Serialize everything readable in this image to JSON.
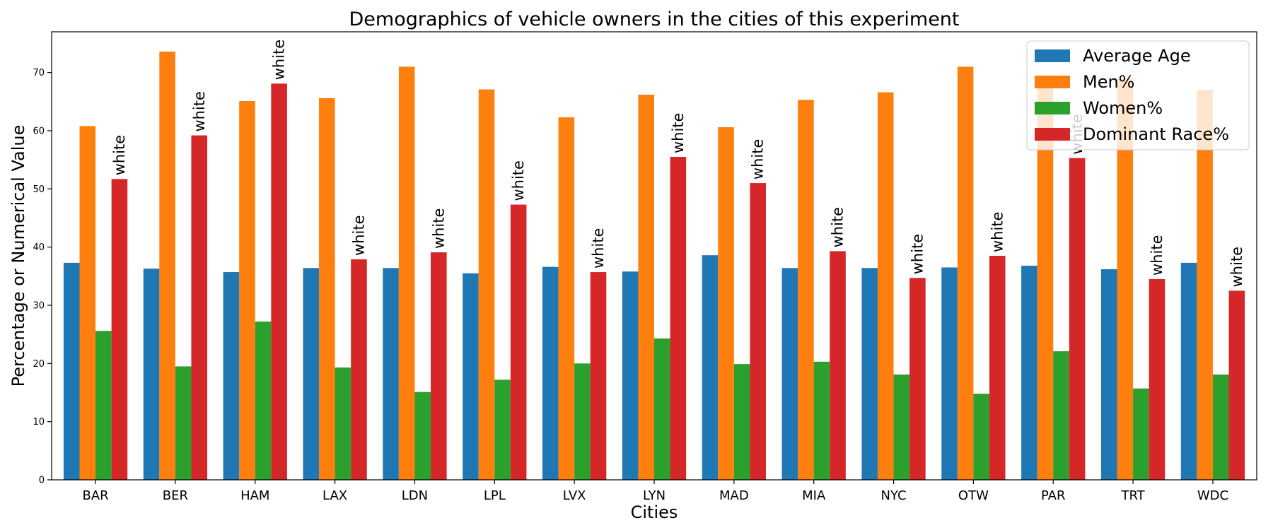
{
  "chart_data": {
    "type": "bar",
    "title": "Demographics of vehicle owners in the cities of this experiment",
    "xlabel": "Cities",
    "ylabel": "Percentage or Numerical Value",
    "ylim": [
      0,
      77
    ],
    "yticks": [
      0,
      10,
      20,
      30,
      40,
      50,
      60,
      70
    ],
    "grid": false,
    "legend_position": "top-right",
    "categories": [
      "BAR",
      "BER",
      "HAM",
      "LAX",
      "LDN",
      "LPL",
      "LVX",
      "LYN",
      "MAD",
      "MIA",
      "NYC",
      "OTW",
      "PAR",
      "TRT",
      "WDC"
    ],
    "series": [
      {
        "name": "Average Age",
        "color": "#1f77b4",
        "values": [
          37.3,
          36.3,
          35.7,
          36.4,
          36.4,
          35.5,
          36.6,
          35.8,
          38.6,
          36.4,
          36.4,
          36.5,
          36.8,
          36.2,
          37.3
        ]
      },
      {
        "name": "Men%",
        "color": "#ff7f0e",
        "values": [
          60.8,
          73.6,
          65.1,
          65.6,
          71.0,
          67.1,
          62.3,
          66.2,
          60.6,
          65.3,
          66.6,
          71.0,
          69.0,
          69.0,
          67.0
        ]
      },
      {
        "name": "Women%",
        "color": "#2ca02c",
        "values": [
          25.6,
          19.5,
          27.2,
          19.3,
          15.1,
          17.2,
          20.0,
          24.3,
          19.9,
          20.3,
          18.1,
          14.8,
          22.1,
          15.7,
          18.1
        ]
      },
      {
        "name": "Dominant Race%",
        "color": "#d62728",
        "values": [
          51.7,
          59.2,
          68.1,
          37.9,
          39.1,
          47.3,
          35.7,
          55.5,
          51.0,
          39.3,
          34.7,
          38.5,
          55.3,
          34.5,
          32.5
        ],
        "labels": [
          "white",
          "white",
          "white",
          "white",
          "white",
          "white",
          "white",
          "white",
          "white",
          "white",
          "white",
          "white",
          "white",
          "white",
          "white"
        ]
      }
    ]
  }
}
